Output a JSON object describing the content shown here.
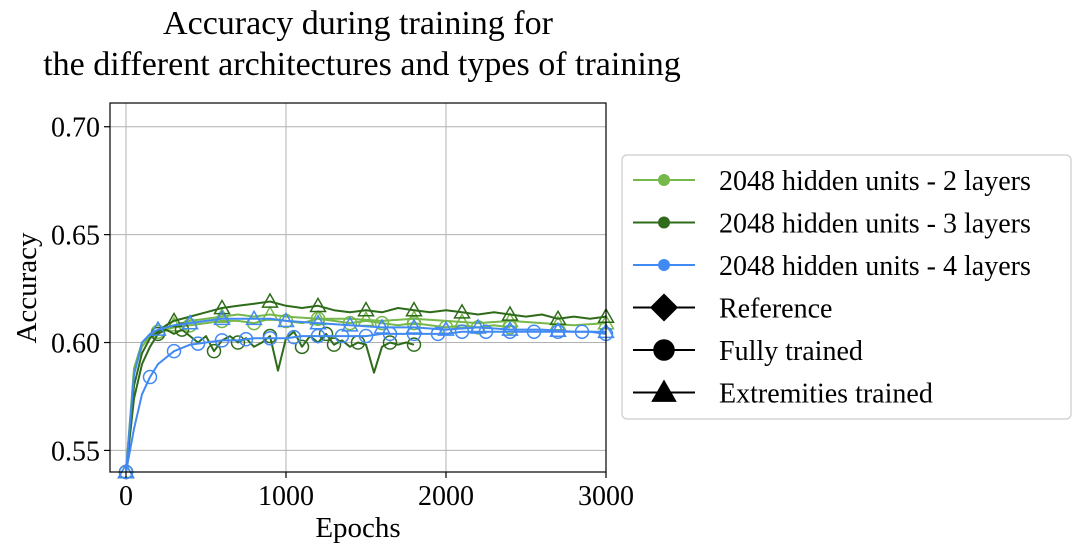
{
  "chart_data": {
    "type": "line",
    "title": [
      "Accuracy during training for",
      "the different architectures and types of training"
    ],
    "xlabel": "Epochs",
    "ylabel": "Accuracy",
    "xlim": [
      -100,
      3000
    ],
    "ylim": [
      0.54,
      0.711
    ],
    "xticks": [
      0,
      1000,
      2000,
      3000
    ],
    "xtick_labels": [
      "0",
      "1000",
      "2000",
      "3000"
    ],
    "yticks": [
      0.55,
      0.6,
      0.65,
      0.7
    ],
    "ytick_labels": [
      "0.55",
      "0.60",
      "0.65",
      "0.70"
    ],
    "grid": true,
    "legend_position": "right, outside plot",
    "colors": {
      "light_green": "#77b84a",
      "dark_green": "#2e6b1a",
      "blue": "#4189f3"
    },
    "legend": [
      {
        "label": "2048 hidden units - 2 layers",
        "kind": "color",
        "color": "#77b84a"
      },
      {
        "label": "2048 hidden units - 3 layers",
        "kind": "color",
        "color": "#2e6b1a"
      },
      {
        "label": "2048 hidden units - 4 layers",
        "kind": "color",
        "color": "#4189f3"
      },
      {
        "label": "Reference",
        "kind": "marker",
        "marker": "diamond"
      },
      {
        "label": "Fully trained",
        "kind": "marker",
        "marker": "circle"
      },
      {
        "label": "Extremities trained",
        "kind": "marker",
        "marker": "triangle"
      }
    ],
    "series": [
      {
        "architecture": "2048 hidden units - 2 layers",
        "training": "Fully trained",
        "color": "#77b84a",
        "marker": "circle",
        "x": [
          0,
          50,
          100,
          150,
          200,
          300,
          400,
          500,
          600,
          700,
          800,
          900,
          1000,
          1100,
          1200,
          1300,
          1400,
          1500,
          1600,
          1700,
          1800,
          1900,
          2000,
          2100,
          2200,
          2300,
          2400
        ],
        "y": [
          0.54,
          0.588,
          0.6,
          0.603,
          0.605,
          0.607,
          0.608,
          0.609,
          0.61,
          0.61,
          0.609,
          0.611,
          0.61,
          0.609,
          0.611,
          0.61,
          0.609,
          0.61,
          0.609,
          0.608,
          0.609,
          0.608,
          0.607,
          0.608,
          0.607,
          0.608,
          0.607
        ],
        "marker_x": [
          0,
          200,
          400,
          600,
          800,
          1000,
          1200,
          1400,
          1600,
          1800,
          2000,
          2200,
          2400
        ]
      },
      {
        "architecture": "2048 hidden units - 2 layers",
        "training": "Extremities trained",
        "color": "#77b84a",
        "marker": "triangle",
        "x": [
          0,
          50,
          100,
          150,
          200,
          300,
          400,
          500,
          600,
          700,
          800,
          900,
          1000,
          1200,
          1400,
          1600,
          1800,
          2000,
          2200,
          2400,
          2600,
          2800,
          3000
        ],
        "y": [
          0.54,
          0.586,
          0.598,
          0.603,
          0.606,
          0.608,
          0.61,
          0.611,
          0.612,
          0.613,
          0.612,
          0.613,
          0.612,
          0.611,
          0.611,
          0.61,
          0.611,
          0.61,
          0.609,
          0.61,
          0.609,
          0.608,
          0.609
        ],
        "marker_x": [
          0,
          300,
          600,
          900,
          1200,
          1500,
          1800,
          2100,
          2400,
          2700,
          3000
        ]
      },
      {
        "architecture": "2048 hidden units - 3 layers",
        "training": "Fully trained",
        "color": "#2e6b1a",
        "marker": "circle",
        "x": [
          0,
          50,
          100,
          150,
          200,
          250,
          300,
          350,
          400,
          450,
          500,
          550,
          600,
          650,
          700,
          750,
          800,
          850,
          900,
          950,
          1000,
          1050,
          1100,
          1150,
          1200,
          1250,
          1300,
          1350,
          1400,
          1450,
          1500,
          1550,
          1600,
          1650,
          1700,
          1750,
          1800
        ],
        "y": [
          0.54,
          0.574,
          0.59,
          0.598,
          0.604,
          0.606,
          0.604,
          0.606,
          0.603,
          0.6,
          0.603,
          0.596,
          0.601,
          0.603,
          0.6,
          0.602,
          0.598,
          0.6,
          0.603,
          0.587,
          0.602,
          0.605,
          0.598,
          0.603,
          0.6,
          0.604,
          0.599,
          0.601,
          0.598,
          0.6,
          0.599,
          0.586,
          0.598,
          0.6,
          0.599,
          0.6,
          0.599
        ],
        "marker_x": [
          0,
          200,
          350,
          550,
          700,
          900,
          1100,
          1250,
          1300,
          1450,
          1650,
          1800
        ]
      },
      {
        "architecture": "2048 hidden units - 3 layers",
        "training": "Extremities trained",
        "color": "#2e6b1a",
        "marker": "triangle",
        "x": [
          0,
          50,
          100,
          150,
          200,
          250,
          300,
          400,
          500,
          600,
          700,
          800,
          900,
          1000,
          1100,
          1200,
          1300,
          1400,
          1500,
          1600,
          1700,
          1800,
          1900,
          2000,
          2100,
          2200,
          2300,
          2400,
          2500,
          2600,
          2700,
          2800,
          2900,
          3000
        ],
        "y": [
          0.54,
          0.58,
          0.595,
          0.602,
          0.605,
          0.608,
          0.61,
          0.612,
          0.614,
          0.616,
          0.617,
          0.618,
          0.619,
          0.617,
          0.616,
          0.617,
          0.615,
          0.614,
          0.615,
          0.614,
          0.616,
          0.615,
          0.614,
          0.615,
          0.614,
          0.613,
          0.614,
          0.613,
          0.612,
          0.613,
          0.611,
          0.612,
          0.611,
          0.612
        ],
        "marker_x": [
          0,
          300,
          600,
          900,
          1200,
          1500,
          1800,
          2100,
          2400,
          2700,
          3000
        ]
      },
      {
        "architecture": "2048 hidden units - 4 layers",
        "training": "Fully trained",
        "color": "#4189f3",
        "marker": "circle",
        "x": [
          0,
          50,
          100,
          150,
          200,
          300,
          400,
          500,
          600,
          700,
          800,
          900,
          1000,
          1100,
          1200,
          1300,
          1400,
          1500,
          1600,
          1700,
          1800,
          1900,
          2000,
          2100,
          2200,
          2300,
          2400,
          2500,
          2600,
          2700,
          2800,
          2900,
          3000
        ],
        "y": [
          0.54,
          0.56,
          0.576,
          0.584,
          0.59,
          0.596,
          0.599,
          0.6,
          0.601,
          0.601,
          0.602,
          0.602,
          0.602,
          0.603,
          0.603,
          0.603,
          0.603,
          0.603,
          0.604,
          0.604,
          0.604,
          0.604,
          0.604,
          0.605,
          0.605,
          0.605,
          0.605,
          0.605,
          0.605,
          0.605,
          0.605,
          0.605,
          0.604
        ],
        "marker_x": [
          0,
          150,
          300,
          450,
          600,
          750,
          900,
          1050,
          1200,
          1350,
          1500,
          1650,
          1800,
          1950,
          2100,
          2250,
          2400,
          2550,
          2700,
          2850,
          3000
        ]
      },
      {
        "architecture": "2048 hidden units - 4 layers",
        "training": "Extremities trained",
        "color": "#4189f3",
        "marker": "triangle",
        "x": [
          0,
          50,
          100,
          150,
          200,
          300,
          400,
          500,
          600,
          700,
          800,
          900,
          1000,
          1200,
          1400,
          1600,
          1800,
          2000,
          2200,
          2400,
          2600,
          2800,
          3000
        ],
        "y": [
          0.54,
          0.585,
          0.6,
          0.604,
          0.606,
          0.608,
          0.609,
          0.61,
          0.611,
          0.611,
          0.611,
          0.611,
          0.61,
          0.609,
          0.608,
          0.607,
          0.607,
          0.606,
          0.607,
          0.606,
          0.606,
          0.605,
          0.605
        ],
        "marker_x": [
          0,
          200,
          400,
          600,
          800,
          1000,
          1200,
          1400,
          1600,
          1800,
          2000,
          2200,
          2400,
          2700,
          3000
        ]
      }
    ]
  }
}
